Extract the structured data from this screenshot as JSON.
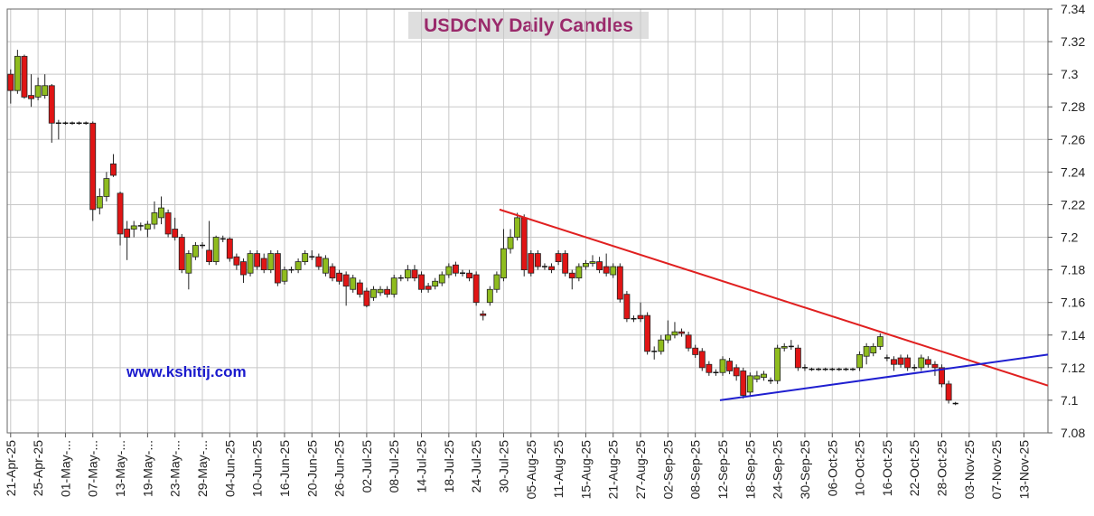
{
  "chart_data": {
    "type": "candlestick",
    "title": "USDCNY Daily Candles",
    "watermark": "www.kshitij.com",
    "up_color": "#8fbc1e",
    "down_color": "#e01515",
    "grid": true,
    "ylim": [
      7.08,
      7.34
    ],
    "yticks": [
      7.08,
      7.1,
      7.12,
      7.14,
      7.16,
      7.18,
      7.2,
      7.22,
      7.24,
      7.26,
      7.28,
      7.3,
      7.32,
      7.34
    ],
    "yticks_fmt": null,
    "categories": [
      "21-Apr-25",
      null,
      null,
      null,
      "25-Apr-25",
      null,
      null,
      null,
      "01-May-...",
      null,
      null,
      null,
      "07-May-...",
      null,
      null,
      null,
      "13-May-...",
      null,
      null,
      null,
      "19-May-...",
      null,
      null,
      null,
      "23-May-...",
      null,
      null,
      null,
      "29-May-...",
      null,
      null,
      null,
      "04-Jun-25",
      null,
      null,
      null,
      "10-Jun-25",
      null,
      null,
      null,
      "16-Jun-25",
      null,
      null,
      null,
      "20-Jun-25",
      null,
      null,
      null,
      "26-Jun-25",
      null,
      null,
      null,
      "02-Jul-25",
      null,
      null,
      null,
      "08-Jul-25",
      null,
      null,
      null,
      "14-Jul-25",
      null,
      null,
      null,
      "18-Jul-25",
      null,
      null,
      null,
      "24-Jul-25",
      null,
      null,
      null,
      "30-Jul-25",
      null,
      null,
      null,
      "05-Aug-25",
      null,
      null,
      null,
      "11-Aug-25",
      null,
      null,
      null,
      "15-Aug-25",
      null,
      null,
      null,
      "21-Aug-25",
      null,
      null,
      null,
      "27-Aug-25",
      null,
      null,
      null,
      "02-Sep-25",
      null,
      null,
      null,
      "08-Sep-25",
      null,
      null,
      null,
      "12-Sep-25",
      null,
      null,
      null,
      "18-Sep-25",
      null,
      null,
      null,
      "24-Sep-25",
      null,
      null,
      null,
      "30-Sep-25",
      null,
      null,
      null,
      "06-Oct-25",
      null,
      null,
      null,
      "10-Oct-25",
      null,
      null,
      null,
      "16-Oct-25",
      null,
      null,
      null,
      "22-Oct-25",
      null,
      null,
      null,
      "28-Oct-25",
      null,
      null,
      null,
      "03-Nov-25",
      null,
      null,
      null,
      "07-Nov-25",
      null,
      null,
      null,
      "13-Nov-25",
      null,
      null,
      null
    ],
    "candles": [
      [
        7.3,
        7.303,
        7.282,
        7.29
      ],
      [
        7.29,
        7.315,
        7.288,
        7.311
      ],
      [
        7.311,
        7.312,
        7.285,
        7.286
      ],
      [
        7.287,
        7.3,
        7.28,
        7.285
      ],
      [
        7.286,
        7.298,
        7.284,
        7.293
      ],
      [
        7.287,
        7.3,
        7.285,
        7.293
      ],
      [
        7.293,
        7.294,
        7.258,
        7.27
      ],
      [
        7.27,
        7.272,
        7.26,
        7.27
      ],
      [
        7.27,
        7.271,
        7.269,
        7.27
      ],
      [
        7.27,
        7.271,
        7.269,
        7.27
      ],
      [
        7.27,
        7.271,
        7.269,
        7.27
      ],
      [
        7.27,
        7.271,
        7.269,
        7.27
      ],
      [
        7.27,
        7.271,
        7.21,
        7.217
      ],
      [
        7.218,
        7.23,
        7.214,
        7.225
      ],
      [
        7.225,
        7.24,
        7.222,
        7.236
      ],
      [
        7.245,
        7.251,
        7.237,
        7.238
      ],
      [
        7.227,
        7.228,
        7.195,
        7.202
      ],
      [
        7.205,
        7.21,
        7.186,
        7.2
      ],
      [
        7.205,
        7.21,
        7.2,
        7.207
      ],
      [
        7.207,
        7.209,
        7.204,
        7.207
      ],
      [
        7.205,
        7.21,
        7.2,
        7.208
      ],
      [
        7.208,
        7.222,
        7.205,
        7.215
      ],
      [
        7.212,
        7.225,
        7.208,
        7.218
      ],
      [
        7.215,
        7.217,
        7.2,
        7.202
      ],
      [
        7.205,
        7.212,
        7.198,
        7.2
      ],
      [
        7.2,
        7.202,
        7.178,
        7.18
      ],
      [
        7.178,
        7.192,
        7.168,
        7.19
      ],
      [
        7.188,
        7.197,
        7.186,
        7.195
      ],
      [
        7.195,
        7.197,
        7.193,
        7.195
      ],
      [
        7.192,
        7.21,
        7.183,
        7.185
      ],
      [
        7.185,
        7.201,
        7.183,
        7.2
      ],
      [
        7.199,
        7.201,
        7.197,
        7.199
      ],
      [
        7.199,
        7.2,
        7.185,
        7.187
      ],
      [
        7.188,
        7.19,
        7.18,
        7.183
      ],
      [
        7.185,
        7.187,
        7.172,
        7.177
      ],
      [
        7.178,
        7.192,
        7.176,
        7.19
      ],
      [
        7.19,
        7.192,
        7.18,
        7.182
      ],
      [
        7.187,
        7.19,
        7.178,
        7.18
      ],
      [
        7.18,
        7.192,
        7.178,
        7.19
      ],
      [
        7.19,
        7.192,
        7.17,
        7.172
      ],
      [
        7.173,
        7.182,
        7.171,
        7.18
      ],
      [
        7.18,
        7.182,
        7.178,
        7.18
      ],
      [
        7.18,
        7.187,
        7.178,
        7.185
      ],
      [
        7.185,
        7.192,
        7.183,
        7.19
      ],
      [
        7.188,
        7.192,
        7.186,
        7.188
      ],
      [
        7.188,
        7.19,
        7.18,
        7.182
      ],
      [
        7.178,
        7.189,
        7.176,
        7.187
      ],
      [
        7.182,
        7.184,
        7.173,
        7.175
      ],
      [
        7.178,
        7.18,
        7.171,
        7.173
      ],
      [
        7.177,
        7.179,
        7.158,
        7.17
      ],
      [
        7.168,
        7.177,
        7.166,
        7.175
      ],
      [
        7.172,
        7.174,
        7.163,
        7.165
      ],
      [
        7.167,
        7.169,
        7.157,
        7.158
      ],
      [
        7.163,
        7.17,
        7.161,
        7.168
      ],
      [
        7.166,
        7.17,
        7.164,
        7.168
      ],
      [
        7.168,
        7.17,
        7.163,
        7.165
      ],
      [
        7.165,
        7.177,
        7.163,
        7.175
      ],
      [
        7.175,
        7.177,
        7.173,
        7.175
      ],
      [
        7.175,
        7.183,
        7.173,
        7.18
      ],
      [
        7.18,
        7.183,
        7.173,
        7.175
      ],
      [
        7.177,
        7.179,
        7.166,
        7.168
      ],
      [
        7.17,
        7.172,
        7.166,
        7.168
      ],
      [
        7.17,
        7.175,
        7.168,
        7.173
      ],
      [
        7.172,
        7.179,
        7.17,
        7.177
      ],
      [
        7.177,
        7.184,
        7.175,
        7.182
      ],
      [
        7.183,
        7.185,
        7.176,
        7.178
      ],
      [
        7.178,
        7.18,
        7.176,
        7.178
      ],
      [
        7.178,
        7.18,
        7.173,
        7.175
      ],
      [
        7.177,
        7.179,
        7.158,
        7.16
      ],
      [
        7.153,
        7.155,
        7.149,
        7.152
      ],
      [
        7.16,
        7.17,
        7.158,
        7.168
      ],
      [
        7.168,
        7.179,
        7.166,
        7.177
      ],
      [
        7.175,
        7.205,
        7.173,
        7.193
      ],
      [
        7.193,
        7.205,
        7.19,
        7.2
      ],
      [
        7.2,
        7.215,
        7.198,
        7.212
      ],
      [
        7.212,
        7.214,
        7.176,
        7.18
      ],
      [
        7.19,
        7.192,
        7.176,
        7.178
      ],
      [
        7.19,
        7.192,
        7.18,
        7.182
      ],
      [
        7.182,
        7.184,
        7.18,
        7.182
      ],
      [
        7.182,
        7.184,
        7.178,
        7.18
      ],
      [
        7.19,
        7.192,
        7.183,
        7.185
      ],
      [
        7.19,
        7.192,
        7.176,
        7.178
      ],
      [
        7.178,
        7.18,
        7.168,
        7.175
      ],
      [
        7.175,
        7.184,
        7.173,
        7.182
      ],
      [
        7.182,
        7.186,
        7.18,
        7.184
      ],
      [
        7.184,
        7.189,
        7.182,
        7.185
      ],
      [
        7.185,
        7.188,
        7.178,
        7.18
      ],
      [
        7.182,
        7.19,
        7.176,
        7.178
      ],
      [
        7.177,
        7.184,
        7.175,
        7.182
      ],
      [
        7.182,
        7.184,
        7.16,
        7.162
      ],
      [
        7.165,
        7.167,
        7.148,
        7.15
      ],
      [
        7.15,
        7.152,
        7.148,
        7.15
      ],
      [
        7.152,
        7.16,
        7.148,
        7.15
      ],
      [
        7.152,
        7.154,
        7.128,
        7.13
      ],
      [
        7.13,
        7.133,
        7.125,
        7.13
      ],
      [
        7.13,
        7.14,
        7.128,
        7.137
      ],
      [
        7.137,
        7.149,
        7.135,
        7.14
      ],
      [
        7.14,
        7.148,
        7.138,
        7.142
      ],
      [
        7.142,
        7.144,
        7.139,
        7.141
      ],
      [
        7.14,
        7.142,
        7.13,
        7.132
      ],
      [
        7.132,
        7.134,
        7.126,
        7.128
      ],
      [
        7.13,
        7.132,
        7.118,
        7.12
      ],
      [
        7.122,
        7.124,
        7.115,
        7.117
      ],
      [
        7.117,
        7.119,
        7.115,
        7.117
      ],
      [
        7.117,
        7.127,
        7.115,
        7.125
      ],
      [
        7.124,
        7.126,
        7.116,
        7.118
      ],
      [
        7.12,
        7.122,
        7.112,
        7.115
      ],
      [
        7.118,
        7.12,
        7.101,
        7.103
      ],
      [
        7.105,
        7.117,
        7.103,
        7.115
      ],
      [
        7.113,
        7.118,
        7.111,
        7.115
      ],
      [
        7.114,
        7.118,
        7.112,
        7.116
      ],
      [
        7.112,
        7.114,
        7.11,
        7.112
      ],
      [
        7.112,
        7.134,
        7.11,
        7.132
      ],
      [
        7.132,
        7.135,
        7.13,
        7.133
      ],
      [
        7.133,
        7.137,
        7.131,
        7.133
      ],
      [
        7.132,
        7.134,
        7.118,
        7.12
      ],
      [
        7.12,
        7.122,
        7.118,
        7.12
      ],
      [
        7.119,
        7.12,
        7.118,
        7.119
      ],
      [
        7.119,
        7.12,
        7.118,
        7.119
      ],
      [
        7.119,
        7.12,
        7.118,
        7.119
      ],
      [
        7.119,
        7.12,
        7.118,
        7.119
      ],
      [
        7.119,
        7.12,
        7.118,
        7.119
      ],
      [
        7.119,
        7.12,
        7.118,
        7.119
      ],
      [
        7.119,
        7.12,
        7.118,
        7.119
      ],
      [
        7.12,
        7.13,
        7.118,
        7.128
      ],
      [
        7.127,
        7.135,
        7.122,
        7.133
      ],
      [
        7.129,
        7.135,
        7.127,
        7.133
      ],
      [
        7.133,
        7.141,
        7.131,
        7.139
      ],
      [
        7.126,
        7.128,
        7.124,
        7.126
      ],
      [
        7.125,
        7.127,
        7.118,
        7.122
      ],
      [
        7.126,
        7.128,
        7.12,
        7.122
      ],
      [
        7.126,
        7.128,
        7.118,
        7.12
      ],
      [
        7.12,
        7.122,
        7.118,
        7.12
      ],
      [
        7.12,
        7.128,
        7.118,
        7.126
      ],
      [
        7.125,
        7.127,
        7.12,
        7.122
      ],
      [
        7.122,
        7.124,
        7.115,
        7.12
      ],
      [
        7.12,
        7.122,
        7.108,
        7.11
      ],
      [
        7.11,
        7.112,
        7.098,
        7.1
      ],
      [
        7.098,
        7.099,
        7.097,
        7.098
      ],
      null,
      null,
      null,
      null,
      null,
      null,
      null,
      null,
      null,
      null,
      null,
      null,
      null
    ],
    "trendlines": [
      {
        "color": "#e02020",
        "x": [
          71.4,
          151.5
        ],
        "y": [
          7.217,
          7.109
        ]
      },
      {
        "color": "#1f1fd0",
        "x": [
          103.6,
          151.5
        ],
        "y": [
          7.1,
          7.128
        ]
      }
    ]
  }
}
